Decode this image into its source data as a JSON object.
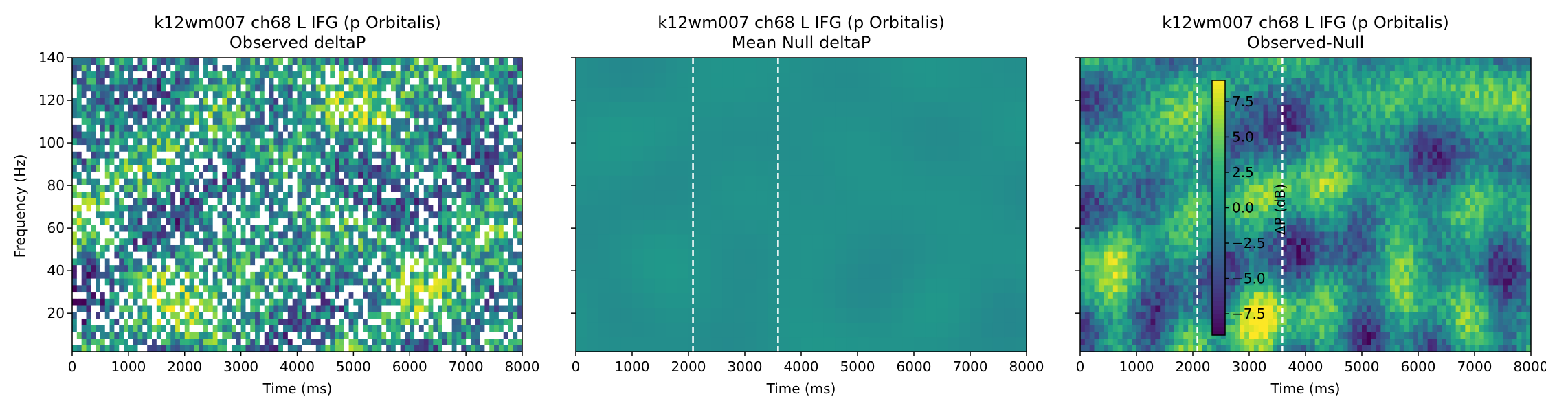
{
  "colors": {
    "viridis": [
      "#440154",
      "#482878",
      "#3e4989",
      "#31688e",
      "#26828e",
      "#1f9e89",
      "#35b779",
      "#6ece58",
      "#b5de2b",
      "#fde725"
    ],
    "marker_line": "#ffffff",
    "axis": "#000000"
  },
  "chart_data": [
    {
      "type": "heatmap",
      "title": "k12wm007 ch68 L IFG (p Orbitalis)",
      "subtitle": "Observed deltaP",
      "xlabel": "Time (ms)",
      "ylabel": "Frequency (Hz)",
      "xlim": [
        0,
        8000
      ],
      "ylim": [
        2,
        140
      ],
      "xticks": [
        0,
        1000,
        2000,
        3000,
        4000,
        5000,
        6000,
        7000,
        8000
      ],
      "yticks": [
        20,
        40,
        60,
        80,
        100,
        120,
        140
      ],
      "colormap": "viridis",
      "clim": [
        -9,
        9
      ],
      "pattern": "noisy deltaP with many masked (white) time-frequency bins",
      "event_lines_ms": [],
      "colorbar": null
    },
    {
      "type": "heatmap",
      "title": "k12wm007 ch68 L IFG (p Orbitalis)",
      "subtitle": "Mean Null deltaP",
      "xlabel": "Time (ms)",
      "ylabel": "",
      "xlim": [
        0,
        8000
      ],
      "ylim": [
        2,
        140
      ],
      "xticks": [
        0,
        1000,
        2000,
        3000,
        4000,
        5000,
        6000,
        7000,
        8000
      ],
      "yticks": [
        20,
        40,
        60,
        80,
        100,
        120,
        140
      ],
      "show_ytick_labels": false,
      "colormap": "viridis",
      "clim": [
        -9,
        9
      ],
      "pattern": "near-zero uniform field",
      "event_lines_ms": [
        2080,
        3590
      ],
      "colorbar": null
    },
    {
      "type": "heatmap",
      "title": "k12wm007 ch68 L IFG (p Orbitalis)",
      "subtitle": "Observed-Null",
      "xlabel": "Time (ms)",
      "ylabel": "",
      "xlim": [
        0,
        8000
      ],
      "ylim": [
        2,
        140
      ],
      "xticks": [
        0,
        1000,
        2000,
        3000,
        4000,
        5000,
        6000,
        7000,
        8000
      ],
      "yticks": [
        20,
        40,
        60,
        80,
        100,
        120,
        140
      ],
      "show_ytick_labels": false,
      "colormap": "viridis",
      "clim": [
        -9,
        9
      ],
      "pattern": "smooth difference field with low-frequency structure",
      "event_lines_ms": [
        2080,
        3590
      ],
      "colorbar": {
        "label": "ΔP (dB)",
        "ticks": [
          -7.5,
          -5.0,
          -2.5,
          0.0,
          2.5,
          5.0,
          7.5
        ]
      }
    }
  ]
}
